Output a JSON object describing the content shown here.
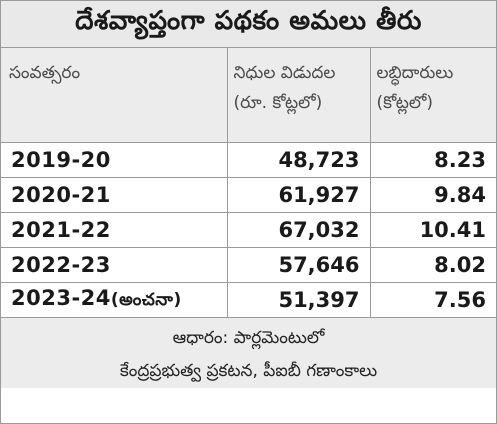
{
  "title": "దేశవ్యాప్తంగా పథకం అమలు తీరు",
  "table": {
    "headers": {
      "year": "సంవత్సరం",
      "funds_line1": "నిధుల విడుదల",
      "funds_line2": "(రూ. కోట్లలో)",
      "beneficiaries_line1": "లబ్ధిదారులు",
      "beneficiaries_line2": "(కోట్లలో)"
    },
    "rows": [
      {
        "year": "2019-20",
        "note": "",
        "funds": "48,723",
        "beneficiaries": "8.23"
      },
      {
        "year": "2020-21",
        "note": "",
        "funds": "61,927",
        "beneficiaries": "9.84"
      },
      {
        "year": "2021-22",
        "note": "",
        "funds": "67,032",
        "beneficiaries": "10.41"
      },
      {
        "year": "2022-23",
        "note": "",
        "funds": "57,646",
        "beneficiaries": "8.02"
      },
      {
        "year": "2023-24",
        "note": "(అంచనా)",
        "funds": "51,397",
        "beneficiaries": "7.56"
      }
    ]
  },
  "footer": {
    "line1": "ఆధారం: పార్లమెంటులో",
    "line2": "కేంద్రప్రభుత్వ ప్రకటన, పీఐబీ గణాంకాలు"
  }
}
